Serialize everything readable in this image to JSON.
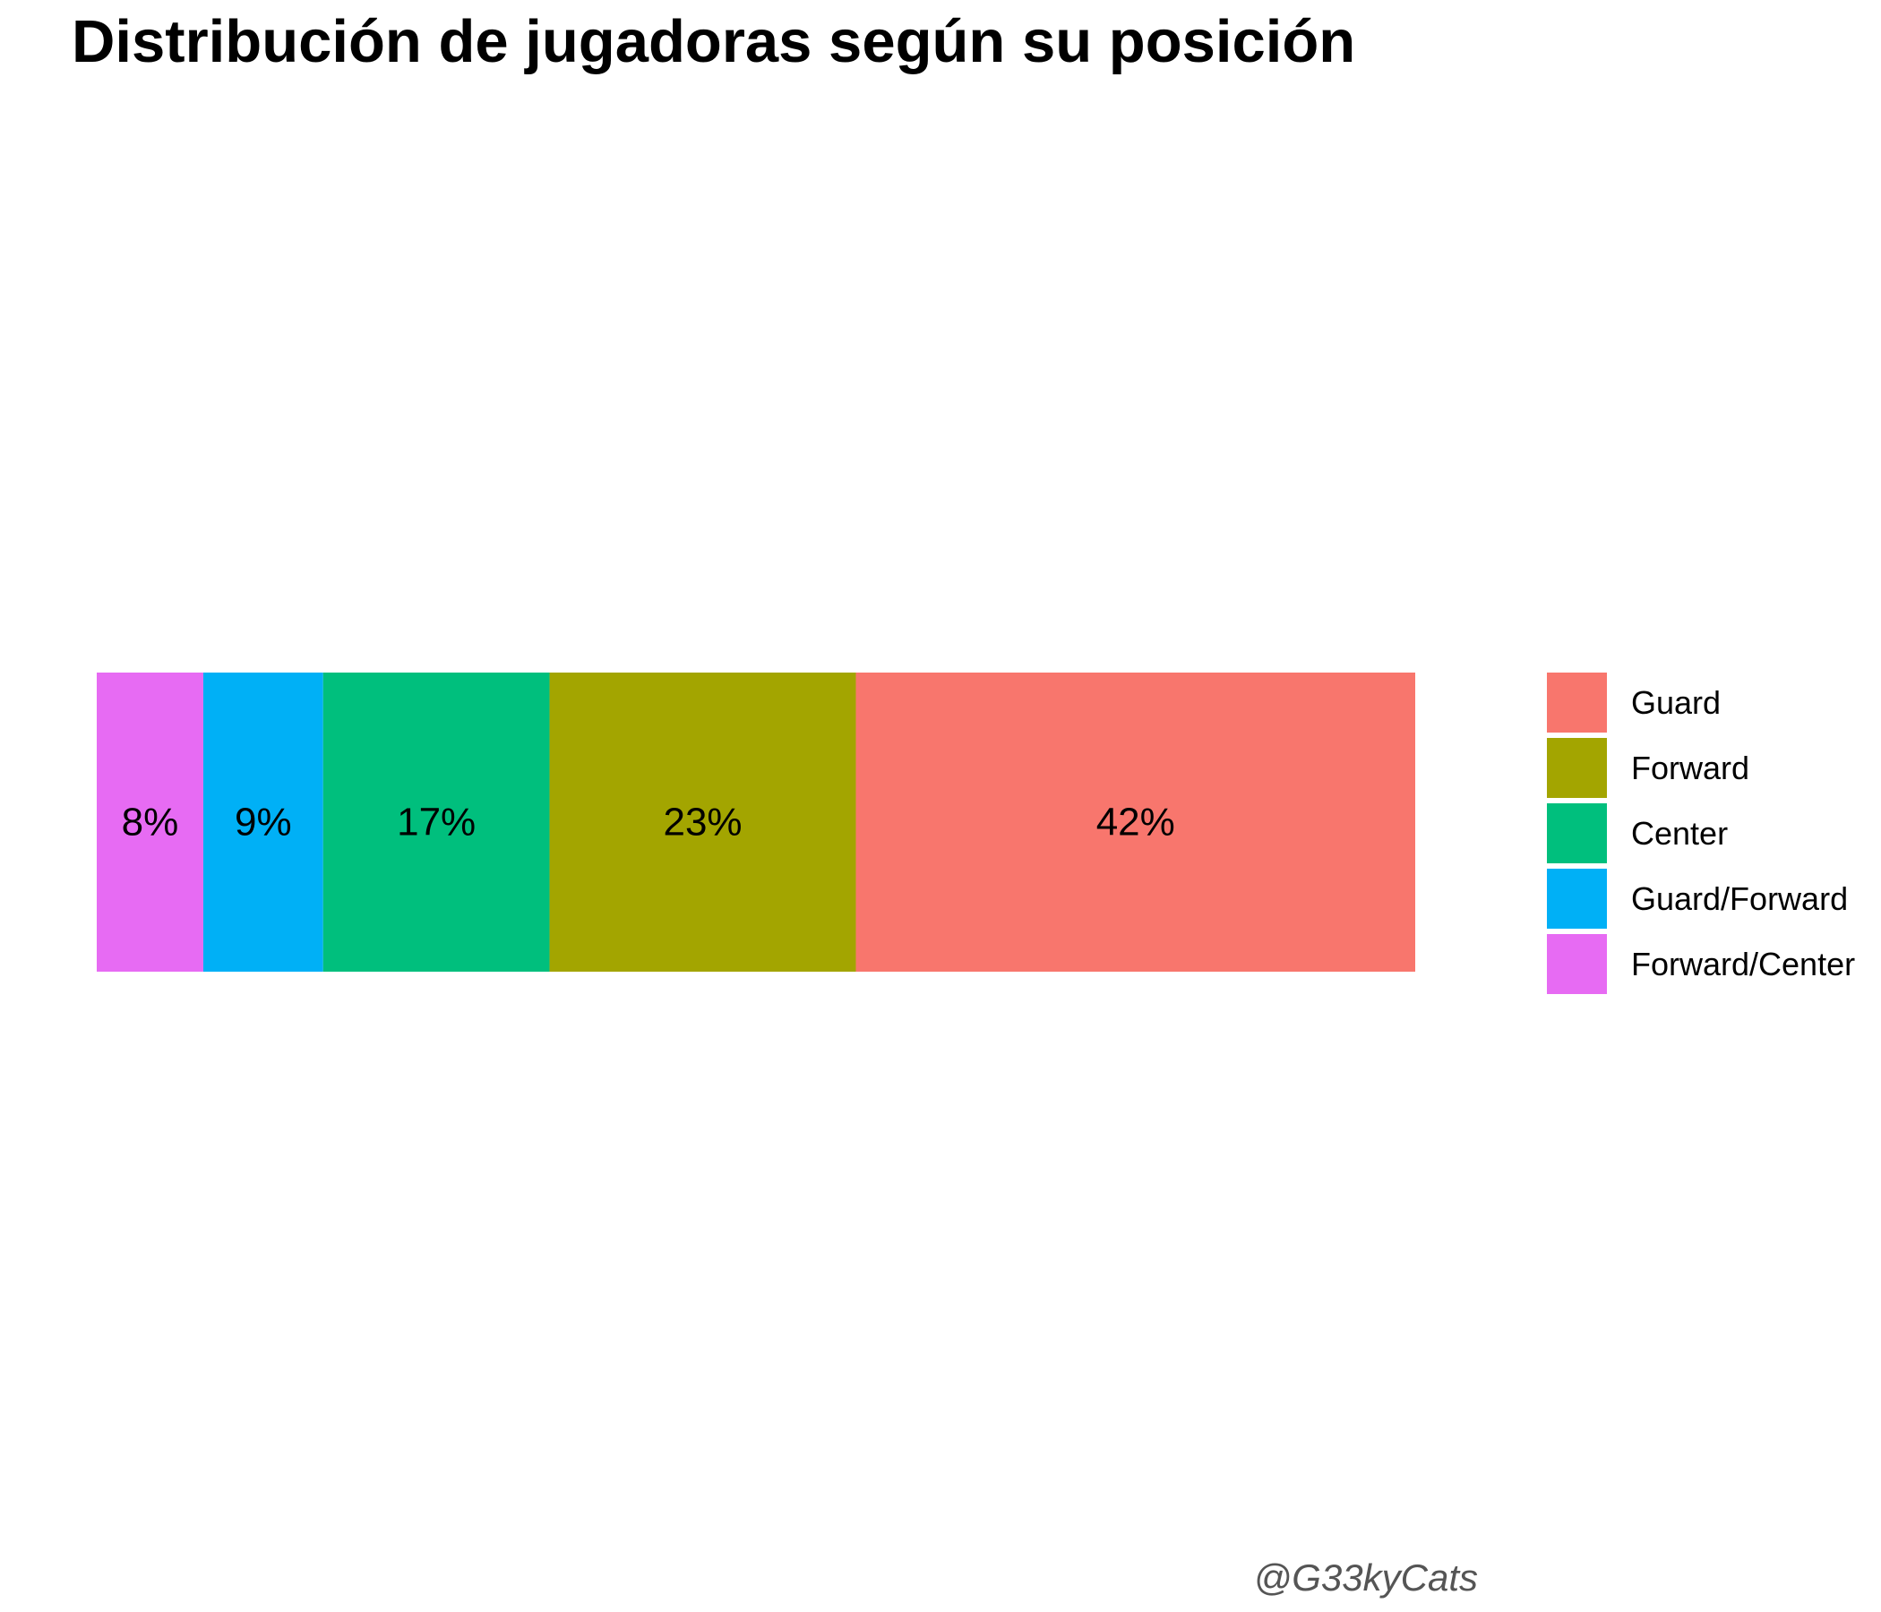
{
  "chart_data": {
    "type": "bar",
    "orientation": "horizontal",
    "stacked": true,
    "normalized_to_percent": true,
    "title": "Distribución de jugadoras según su posición",
    "caption": "@G33kyCats",
    "xlabel": "",
    "ylabel": "",
    "axes_visible": false,
    "grid": false,
    "legend_position": "right",
    "series": [
      {
        "name": "Guard",
        "value": 42,
        "label": "42%",
        "color": "#F8766D"
      },
      {
        "name": "Forward",
        "value": 23,
        "label": "23%",
        "color": "#A3A500"
      },
      {
        "name": "Center",
        "value": 17,
        "label": "17%",
        "color": "#00BF7D"
      },
      {
        "name": "Guard/Forward",
        "value": 9,
        "label": "9%",
        "color": "#00B0F6"
      },
      {
        "name": "Forward/Center",
        "value": 8,
        "label": "8%",
        "color": "#E76BF3"
      }
    ]
  }
}
